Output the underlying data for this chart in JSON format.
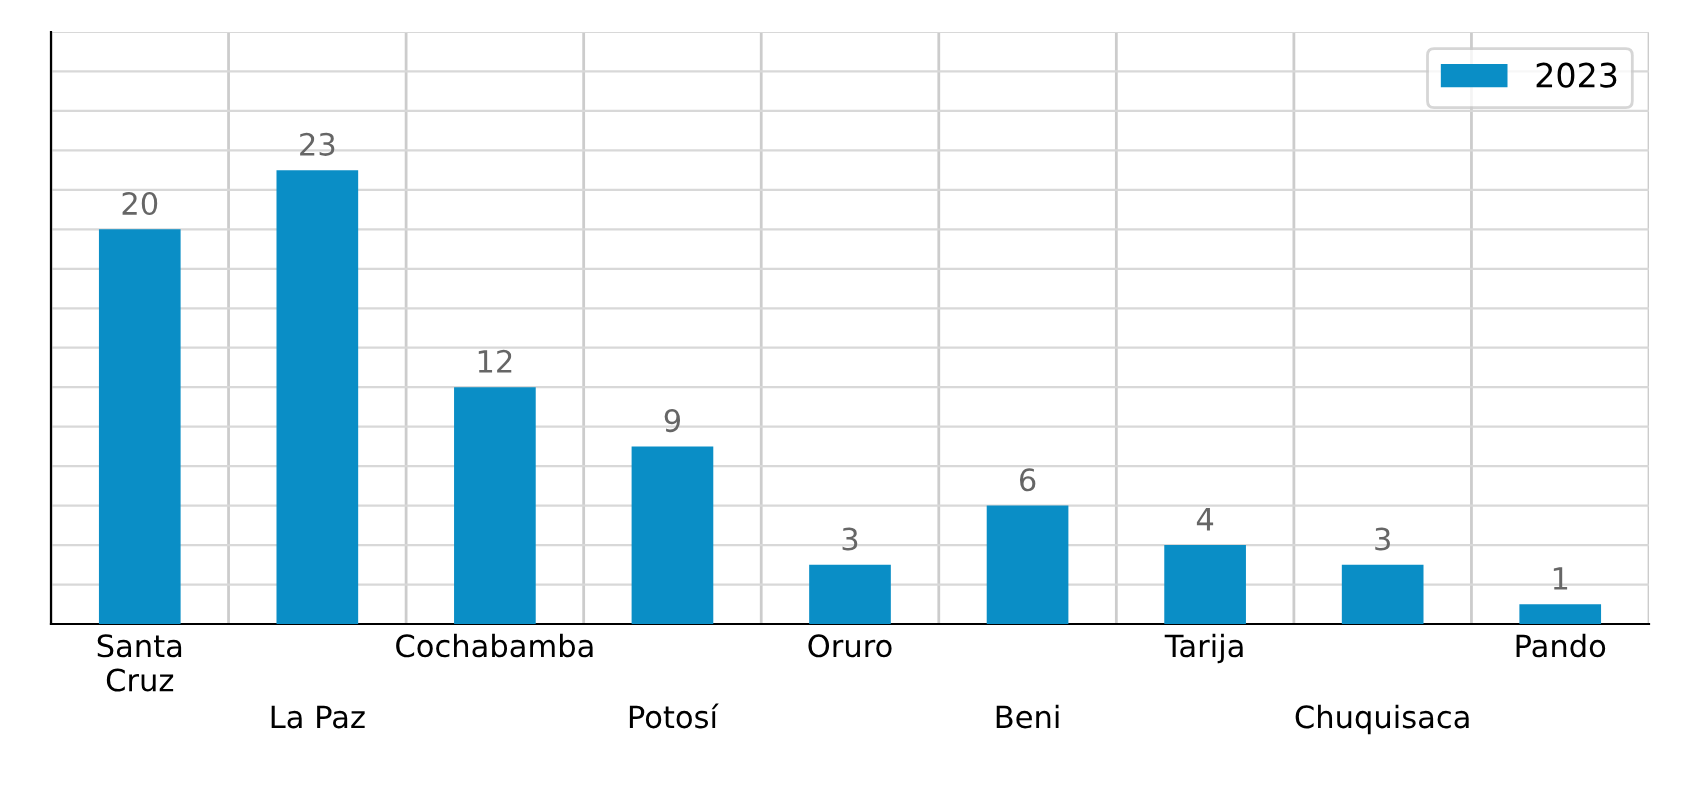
{
  "chart_data": {
    "type": "bar",
    "categories": [
      "Santa\nCruz",
      "La Paz",
      "Cochabamba",
      "Potosí",
      "Oruro",
      "Beni",
      "Tarija",
      "Chuquisaca",
      "Pando"
    ],
    "series": [
      {
        "name": "2023",
        "color": "#0a8ec6",
        "values": [
          20,
          23,
          12,
          9,
          3,
          6,
          4,
          3,
          1
        ]
      }
    ],
    "ylim": [
      0,
      30
    ],
    "yticks": [
      {
        "value": 0,
        "label": null
      },
      {
        "value": 2,
        "label": null
      },
      {
        "value": 4,
        "label": null
      },
      {
        "value": 6,
        "label": null
      },
      {
        "value": 8,
        "label": null
      },
      {
        "value": 10,
        "label": null
      },
      {
        "value": 12,
        "label": null
      },
      {
        "value": 14,
        "label": null
      },
      {
        "value": 16,
        "label": null
      },
      {
        "value": 18,
        "label": null
      },
      {
        "value": 20,
        "label": null
      },
      {
        "value": 22,
        "label": null
      },
      {
        "value": 24,
        "label": null
      },
      {
        "value": 26,
        "label": null
      },
      {
        "value": 28,
        "label": null
      },
      {
        "value": 30,
        "label": null
      }
    ],
    "tick_labels": "x",
    "data_labels": true,
    "grid": true,
    "legend": "top right"
  }
}
